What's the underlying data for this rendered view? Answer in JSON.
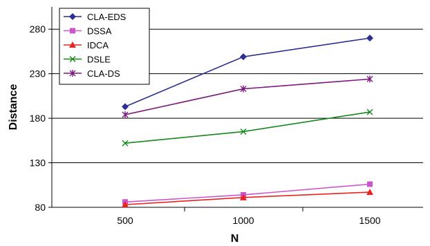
{
  "chart_data": {
    "type": "line",
    "xlabel": "N",
    "ylabel": "Distance",
    "x": [
      500,
      1000,
      1500
    ],
    "xticks": [
      "500",
      "1000",
      "1500"
    ],
    "yticks": [
      80,
      130,
      180,
      230,
      280
    ],
    "ylim": [
      80,
      305
    ],
    "grid": "horizontal",
    "legend_position": "top-left",
    "series": [
      {
        "name": "CLA-EDS",
        "values": [
          193,
          249,
          270
        ],
        "color": "#2b2f8f",
        "marker": "diamond"
      },
      {
        "name": "DSSA",
        "values": [
          86,
          94,
          106
        ],
        "color": "#cc55cc",
        "marker": "square"
      },
      {
        "name": "IDCA",
        "values": [
          83,
          91,
          97
        ],
        "color": "#e8231e",
        "marker": "triangle"
      },
      {
        "name": "DSLE",
        "values": [
          152,
          165,
          187
        ],
        "color": "#14871a",
        "marker": "x"
      },
      {
        "name": "CLA-DS",
        "values": [
          184,
          213,
          224
        ],
        "color": "#7b1a7d",
        "marker": "star"
      }
    ]
  }
}
